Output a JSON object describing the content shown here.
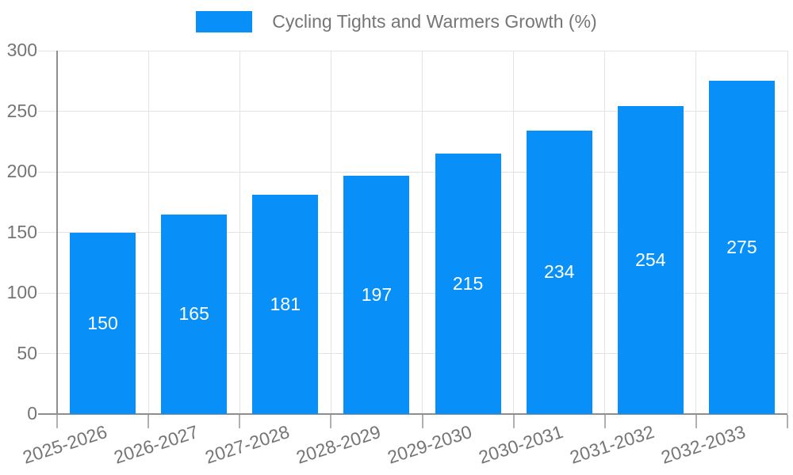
{
  "legend": {
    "label": "Cycling Tights and Warmers Growth (%)"
  },
  "colors": {
    "bar": "#0890F8",
    "axis_text": "#757575",
    "axis_line": "#8E8E8E",
    "grid_line": "#E3E3E3",
    "tick_line": "#B0B0B0",
    "bar_label": "#FFFFFF",
    "background": "#FFFFFF"
  },
  "chart_data": {
    "type": "bar",
    "title": "Cycling Tights and Warmers Growth (%)",
    "categories": [
      "2025-2026",
      "2026-2027",
      "2027-2028",
      "2028-2029",
      "2029-2030",
      "2030-2031",
      "2031-2032",
      "2032-2033"
    ],
    "series": [
      {
        "name": "Cycling Tights and Warmers Growth (%)",
        "values": [
          150,
          165,
          181,
          197,
          215,
          234,
          254,
          275
        ]
      }
    ],
    "xlabel": "",
    "ylabel": "",
    "ylim": [
      0,
      300
    ],
    "ytick_interval": 50,
    "ytick_labels": [
      "0",
      "50",
      "100",
      "150",
      "200",
      "250",
      "300"
    ],
    "grid": true,
    "legend_position": "top-center",
    "value_labels": "inside-center",
    "x_label_rotation_deg": -18
  }
}
